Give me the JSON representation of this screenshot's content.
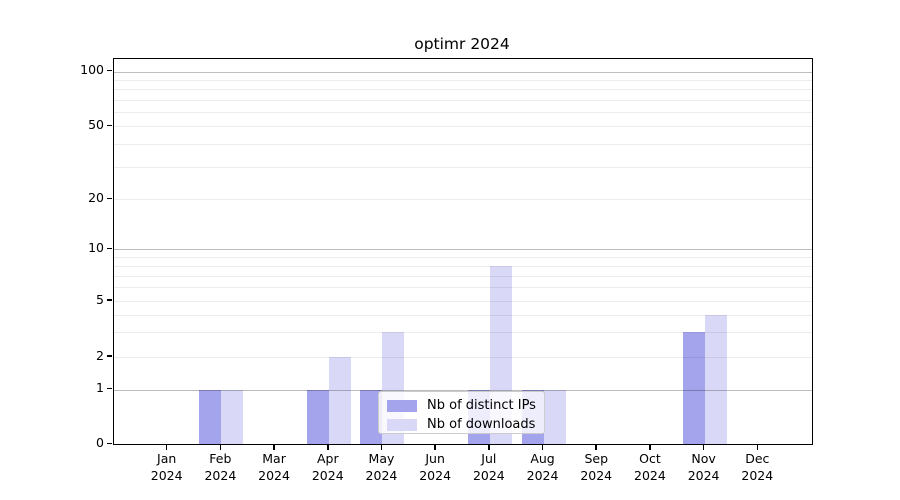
{
  "title": "optimr 2024",
  "chart_data": {
    "type": "bar",
    "title": "optimr 2024",
    "xlabel": "",
    "ylabel": "",
    "categories": [
      "Jan",
      "Feb",
      "Mar",
      "Apr",
      "May",
      "Jun",
      "Jul",
      "Aug",
      "Sep",
      "Oct",
      "Nov",
      "Dec"
    ],
    "year_label": "2024",
    "series": [
      {
        "name": "Nb of distinct IPs",
        "color": "#a4a4ec",
        "values": [
          0,
          1,
          0,
          1,
          1,
          0,
          1,
          1,
          0,
          0,
          3,
          0
        ]
      },
      {
        "name": "Nb of downloads",
        "color": "#d9d9f7",
        "values": [
          0,
          1,
          0,
          2,
          3,
          0,
          8,
          1,
          0,
          0,
          4,
          0
        ]
      }
    ],
    "yscale": "log1p",
    "ylim": [
      0,
      130
    ],
    "y_tick_values": [
      0,
      1,
      2,
      5,
      10,
      20,
      50,
      100
    ],
    "y_tick_labels": [
      "0",
      "1",
      "2",
      "5",
      "10",
      "20",
      "50",
      "100"
    ],
    "grid_major_values": [
      1,
      10,
      100
    ],
    "grid_minor_values": [
      2,
      3,
      4,
      5,
      6,
      7,
      8,
      9,
      20,
      30,
      40,
      50,
      60,
      70,
      80,
      90
    ],
    "legend_position": "lower center inside",
    "colors": {
      "bar_distinct_ips": "#a4a4ec",
      "bar_downloads": "#d9d9f7",
      "grid_major": "#bdbdbd",
      "grid_minor": "#ececec",
      "axis": "#000000",
      "text": "#000000",
      "background": "#ffffff"
    }
  }
}
